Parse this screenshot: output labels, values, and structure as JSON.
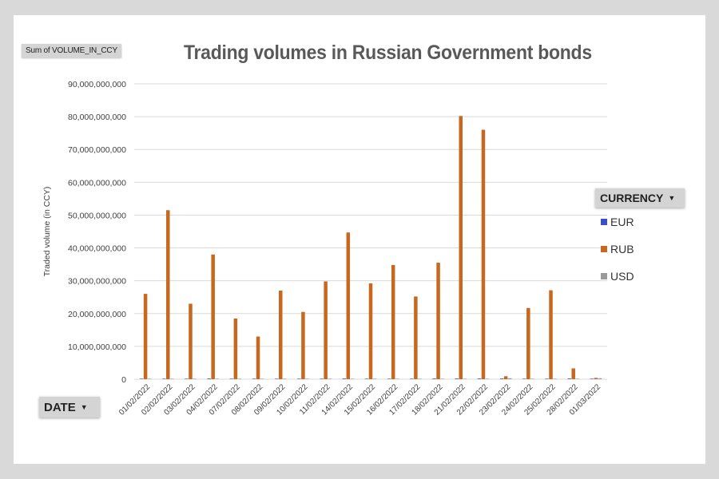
{
  "pivot": {
    "value_field": "Sum of VOLUME_IN_CCY",
    "legend_field": "CURRENCY",
    "axis_field": "DATE"
  },
  "colors": {
    "EUR": "#3a4fc4",
    "RUB": "#c8671e",
    "USD": "#9a9a9a",
    "grid": "#d9d9d9"
  },
  "chart_data": {
    "type": "bar",
    "title": "Trading volumes in Russian Government bonds",
    "ylabel": "Traded volume  (in CCY)",
    "xlabel": "",
    "ylim": [
      0,
      90000000000
    ],
    "yticks": [
      "0",
      "10,000,000,000",
      "20,000,000,000",
      "30,000,000,000",
      "40,000,000,000",
      "50,000,000,000",
      "60,000,000,000",
      "70,000,000,000",
      "80,000,000,000",
      "90,000,000,000"
    ],
    "ytick_values": [
      0,
      10000000000,
      20000000000,
      30000000000,
      40000000000,
      50000000000,
      60000000000,
      70000000000,
      80000000000,
      90000000000
    ],
    "legend_position": "right",
    "grid": true,
    "categories": [
      "01/02/2022",
      "02/02/2022",
      "03/02/2022",
      "04/02/2022",
      "07/02/2022",
      "08/02/2022",
      "09/02/2022",
      "10/02/2022",
      "11/02/2022",
      "14/02/2022",
      "15/02/2022",
      "16/02/2022",
      "17/02/2022",
      "18/02/2022",
      "21/02/2022",
      "22/02/2022",
      "23/02/2022",
      "24/02/2022",
      "25/02/2022",
      "28/02/2022",
      "01/03/2022"
    ],
    "series": [
      {
        "name": "EUR",
        "values": [
          150000000,
          150000000,
          150000000,
          200000000,
          150000000,
          150000000,
          150000000,
          150000000,
          150000000,
          200000000,
          150000000,
          150000000,
          150000000,
          200000000,
          200000000,
          200000000,
          200000000,
          150000000,
          150000000,
          200000000,
          150000000
        ]
      },
      {
        "name": "RUB",
        "values": [
          26000000000,
          51500000000,
          23000000000,
          38000000000,
          18500000000,
          13000000000,
          27000000000,
          20500000000,
          29800000000,
          44700000000,
          29200000000,
          34800000000,
          25200000000,
          35500000000,
          80200000000,
          76000000000,
          900000000,
          21700000000,
          27100000000,
          3300000000,
          400000000
        ]
      },
      {
        "name": "USD",
        "values": [
          150000000,
          150000000,
          150000000,
          150000000,
          150000000,
          150000000,
          150000000,
          150000000,
          150000000,
          150000000,
          150000000,
          150000000,
          150000000,
          150000000,
          150000000,
          150000000,
          300000000,
          150000000,
          150000000,
          150000000,
          300000000
        ]
      }
    ]
  }
}
